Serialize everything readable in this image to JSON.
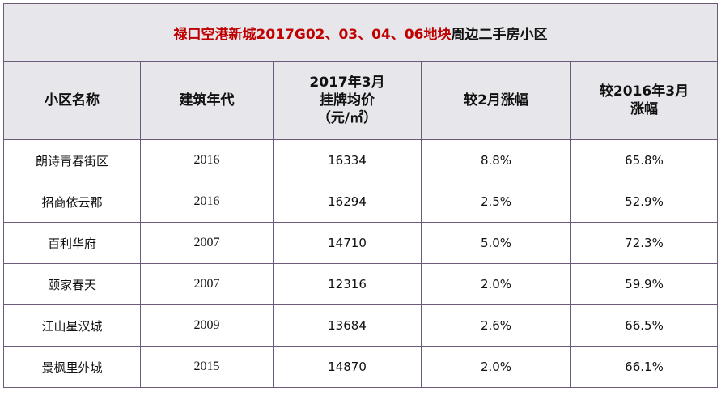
{
  "title": {
    "red_part": "禄口空港新城2017G02、03、04、06地块",
    "black_part": "周边二手房小区"
  },
  "headers": [
    [
      "小区名称"
    ],
    [
      "建筑年代"
    ],
    [
      "2017年3月",
      "挂牌均价",
      "（元/㎡）"
    ],
    [
      "较2月涨幅"
    ],
    [
      "较2016年3月",
      "涨幅"
    ]
  ],
  "rows": [
    [
      "朗诗青春街区",
      "2016",
      "16334",
      "8.8%",
      "65.8%"
    ],
    [
      "招商依云郡",
      "2016",
      "16294",
      "2.5%",
      "52.9%"
    ],
    [
      "百利华府",
      "2007",
      "14710",
      "5.0%",
      "72.3%"
    ],
    [
      "颐家春天",
      "2007",
      "12316",
      "2.0%",
      "59.9%"
    ],
    [
      "江山星汉城",
      "2009",
      "13684",
      "2.6%",
      "66.5%"
    ],
    [
      "景枫里外城",
      "2015",
      "14870",
      "2.0%",
      "66.1%"
    ]
  ]
}
